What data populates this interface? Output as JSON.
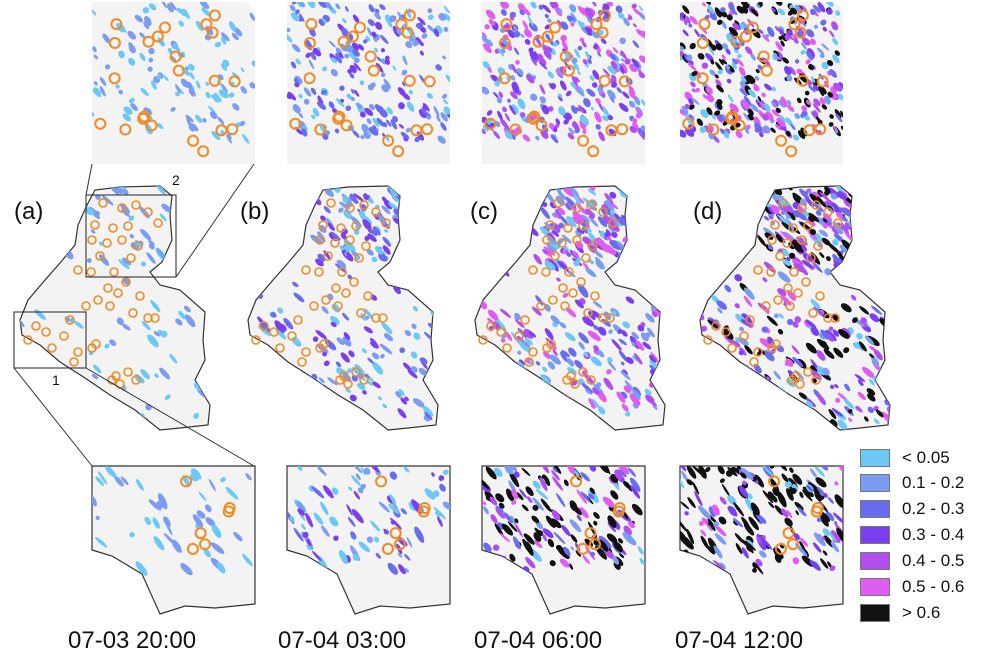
{
  "panels": [
    {
      "label": "(a)",
      "time": "07-03 20:00",
      "level": 0
    },
    {
      "label": "(b)",
      "time": "07-04 03:00",
      "level": 1
    },
    {
      "label": "(c)",
      "time": "07-04 06:00",
      "level": 2
    },
    {
      "label": "(d)",
      "time": "07-04 12:00",
      "level": 3
    }
  ],
  "zoom_boxes": [
    {
      "label": "1"
    },
    {
      "label": "2"
    }
  ],
  "legend": {
    "items": [
      {
        "label": "< 0.05",
        "color": "#6ec8f5"
      },
      {
        "label": "0.1 - 0.2",
        "color": "#7b9cf0"
      },
      {
        "label": "0.2 - 0.3",
        "color": "#6a6cf0"
      },
      {
        "label": "0.3 - 0.4",
        "color": "#7a3ff0"
      },
      {
        "label": "0.4 - 0.5",
        "color": "#b04ef0"
      },
      {
        "label": "0.5 - 0.6",
        "color": "#e05cf2"
      },
      {
        "label": "> 0.6",
        "color": "#111111"
      }
    ]
  },
  "colors": {
    "basin_fill": "#f3f3f3",
    "basin_outline": "#333333",
    "marker": "#f08a24"
  }
}
